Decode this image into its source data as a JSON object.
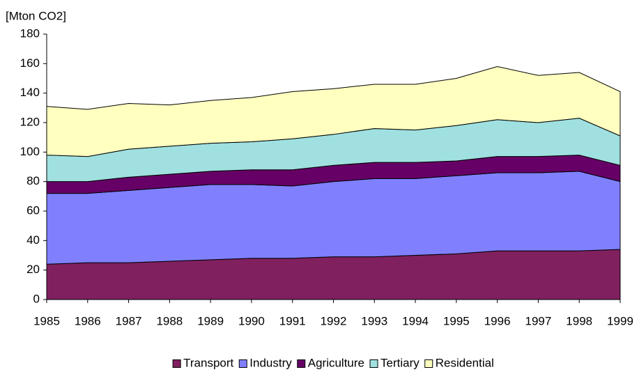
{
  "chart_data": {
    "type": "stacked-area",
    "y_label": "[Mton CO2]",
    "x": [
      1985,
      1986,
      1987,
      1988,
      1989,
      1990,
      1991,
      1992,
      1993,
      1994,
      1995,
      1996,
      1997,
      1998,
      1999
    ],
    "xlim": [
      1985,
      1999
    ],
    "xticks": [
      1985,
      1986,
      1987,
      1988,
      1989,
      1990,
      1991,
      1992,
      1993,
      1994,
      1995,
      1996,
      1997,
      1998,
      1999
    ],
    "ylim": [
      0,
      180
    ],
    "yticks": [
      0,
      20,
      40,
      60,
      80,
      100,
      120,
      140,
      160,
      180
    ],
    "legend": "bottom",
    "series": [
      {
        "name": "Transport",
        "color": "#80205f",
        "values": [
          24,
          25,
          25,
          26,
          27,
          28,
          28,
          29,
          29,
          30,
          31,
          33,
          33,
          33,
          34
        ]
      },
      {
        "name": "Industry",
        "color": "#8080ff",
        "values": [
          48,
          47,
          49,
          50,
          51,
          50,
          49,
          51,
          53,
          52,
          53,
          53,
          53,
          54,
          46
        ]
      },
      {
        "name": "Agriculture",
        "color": "#660066",
        "values": [
          8,
          8,
          9,
          9,
          9,
          10,
          11,
          11,
          11,
          11,
          10,
          11,
          11,
          11,
          11
        ]
      },
      {
        "name": "Tertiary",
        "color": "#a0e0e0",
        "values": [
          18,
          17,
          19,
          19,
          19,
          19,
          21,
          21,
          23,
          22,
          24,
          25,
          23,
          25,
          20
        ]
      },
      {
        "name": "Residential",
        "color": "#ffffc0",
        "values": [
          33,
          32,
          31,
          28,
          29,
          30,
          32,
          31,
          30,
          31,
          32,
          36,
          32,
          31,
          30
        ]
      }
    ]
  }
}
